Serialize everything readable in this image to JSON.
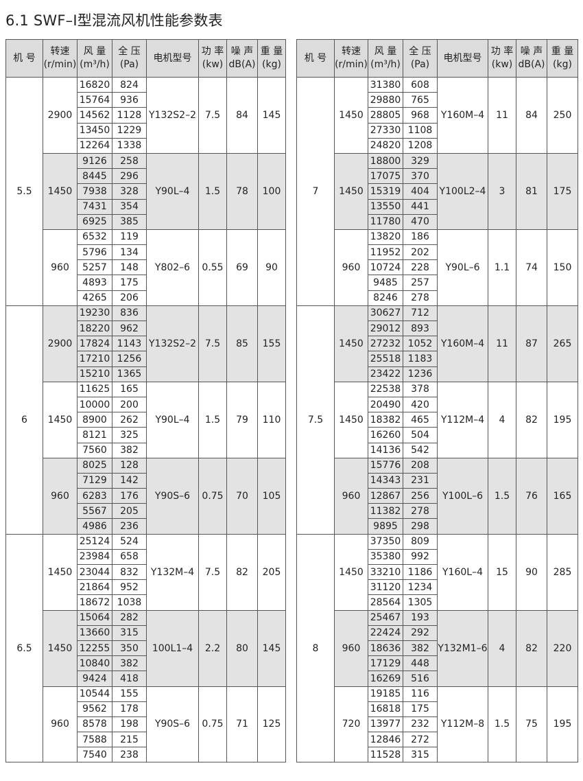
{
  "title": "6.1  SWF–I型混流风机性能参数表",
  "headers": [
    "机  号",
    "转速\n(r/min)",
    "风  量\n(m³/h)",
    "全  压\n(Pa)",
    "电机型号",
    "功  率\n(kw)",
    "噪  声\ndB(A)",
    "重  量\n(kg)"
  ],
  "colors": {
    "header_bg": "#dcdcdc",
    "shaded_group_bg": "#e3e3e3",
    "border": "#555555"
  },
  "tables": [
    {
      "machines": [
        {
          "no": "5.5",
          "groups": [
            {
              "speed": "2900",
              "motor": "Y132S2–2",
              "power": "7.5",
              "noise": "84",
              "weight": "145",
              "rows": [
                [
                  "16820",
                  "824"
                ],
                [
                  "15764",
                  "936"
                ],
                [
                  "14562",
                  "1128"
                ],
                [
                  "13450",
                  "1229"
                ],
                [
                  "12264",
                  "1338"
                ]
              ]
            },
            {
              "speed": "1450",
              "motor": "Y90L–4",
              "power": "1.5",
              "noise": "78",
              "weight": "100",
              "rows": [
                [
                  "9126",
                  "258"
                ],
                [
                  "8445",
                  "296"
                ],
                [
                  "7938",
                  "328"
                ],
                [
                  "7431",
                  "354"
                ],
                [
                  "6925",
                  "385"
                ]
              ]
            },
            {
              "speed": "960",
              "motor": "Y802–6",
              "power": "0.55",
              "noise": "69",
              "weight": "90",
              "rows": [
                [
                  "6532",
                  "119"
                ],
                [
                  "5796",
                  "134"
                ],
                [
                  "5257",
                  "148"
                ],
                [
                  "4893",
                  "175"
                ],
                [
                  "4265",
                  "206"
                ]
              ]
            }
          ]
        },
        {
          "no": "6",
          "groups": [
            {
              "speed": "2900",
              "motor": "Y132S2–2",
              "power": "7.5",
              "noise": "85",
              "weight": "155",
              "rows": [
                [
                  "19230",
                  "836"
                ],
                [
                  "18220",
                  "962"
                ],
                [
                  "17824",
                  "1143"
                ],
                [
                  "17210",
                  "1256"
                ],
                [
                  "15210",
                  "1365"
                ]
              ]
            },
            {
              "speed": "1450",
              "motor": "Y90L–4",
              "power": "1.5",
              "noise": "79",
              "weight": "110",
              "rows": [
                [
                  "11625",
                  "165"
                ],
                [
                  "10000",
                  "200"
                ],
                [
                  "8900",
                  "262"
                ],
                [
                  "8121",
                  "325"
                ],
                [
                  "7560",
                  "382"
                ]
              ]
            },
            {
              "speed": "960",
              "motor": "Y90S–6",
              "power": "0.75",
              "noise": "70",
              "weight": "105",
              "rows": [
                [
                  "8025",
                  "128"
                ],
                [
                  "7129",
                  "142"
                ],
                [
                  "6283",
                  "176"
                ],
                [
                  "5567",
                  "205"
                ],
                [
                  "4986",
                  "236"
                ]
              ]
            }
          ]
        },
        {
          "no": "6.5",
          "groups": [
            {
              "speed": "1450",
              "motor": "Y132M–4",
              "power": "7.5",
              "noise": "82",
              "weight": "205",
              "rows": [
                [
                  "25124",
                  "524"
                ],
                [
                  "23984",
                  "658"
                ],
                [
                  "23044",
                  "832"
                ],
                [
                  "21864",
                  "952"
                ],
                [
                  "18672",
                  "1038"
                ]
              ]
            },
            {
              "speed": "1450",
              "motor": "100L1–4",
              "power": "2.2",
              "noise": "80",
              "weight": "145",
              "rows": [
                [
                  "15064",
                  "282"
                ],
                [
                  "13660",
                  "315"
                ],
                [
                  "12255",
                  "350"
                ],
                [
                  "10840",
                  "382"
                ],
                [
                  "9424",
                  "418"
                ]
              ]
            },
            {
              "speed": "960",
              "motor": "Y90S–6",
              "power": "0.75",
              "noise": "71",
              "weight": "125",
              "rows": [
                [
                  "10544",
                  "155"
                ],
                [
                  "9562",
                  "178"
                ],
                [
                  "8578",
                  "198"
                ],
                [
                  "7588",
                  "215"
                ],
                [
                  "7540",
                  "238"
                ]
              ]
            }
          ]
        }
      ]
    },
    {
      "machines": [
        {
          "no": "7",
          "groups": [
            {
              "speed": "1450",
              "motor": "Y160M–4",
              "power": "11",
              "noise": "84",
              "weight": "250",
              "rows": [
                [
                  "31380",
                  "608"
                ],
                [
                  "29880",
                  "765"
                ],
                [
                  "28805",
                  "968"
                ],
                [
                  "27330",
                  "1108"
                ],
                [
                  "24820",
                  "1208"
                ]
              ]
            },
            {
              "speed": "1450",
              "motor": "Y100L2–4",
              "power": "3",
              "noise": "81",
              "weight": "175",
              "rows": [
                [
                  "18800",
                  "329"
                ],
                [
                  "17075",
                  "370"
                ],
                [
                  "15319",
                  "404"
                ],
                [
                  "13550",
                  "441"
                ],
                [
                  "11780",
                  "470"
                ]
              ]
            },
            {
              "speed": "960",
              "motor": "Y90L–6",
              "power": "1.1",
              "noise": "74",
              "weight": "150",
              "rows": [
                [
                  "13820",
                  "186"
                ],
                [
                  "11952",
                  "202"
                ],
                [
                  "10724",
                  "228"
                ],
                [
                  "9485",
                  "257"
                ],
                [
                  "8246",
                  "278"
                ]
              ]
            }
          ]
        },
        {
          "no": "7.5",
          "groups": [
            {
              "speed": "1450",
              "motor": "Y160M–4",
              "power": "11",
              "noise": "87",
              "weight": "265",
              "rows": [
                [
                  "30627",
                  "712"
                ],
                [
                  "29012",
                  "893"
                ],
                [
                  "27232",
                  "1052"
                ],
                [
                  "25518",
                  "1183"
                ],
                [
                  "23422",
                  "1236"
                ]
              ]
            },
            {
              "speed": "1450",
              "motor": "Y112M–4",
              "power": "4",
              "noise": "82",
              "weight": "195",
              "rows": [
                [
                  "22538",
                  "378"
                ],
                [
                  "20490",
                  "420"
                ],
                [
                  "18382",
                  "465"
                ],
                [
                  "16260",
                  "504"
                ],
                [
                  "14136",
                  "542"
                ]
              ]
            },
            {
              "speed": "960",
              "motor": "Y100L–6",
              "power": "1.5",
              "noise": "76",
              "weight": "165",
              "rows": [
                [
                  "15776",
                  "208"
                ],
                [
                  "14343",
                  "231"
                ],
                [
                  "12867",
                  "256"
                ],
                [
                  "11382",
                  "278"
                ],
                [
                  "9895",
                  "298"
                ]
              ]
            }
          ]
        },
        {
          "no": "8",
          "groups": [
            {
              "speed": "1450",
              "motor": "Y160L–4",
              "power": "15",
              "noise": "90",
              "weight": "285",
              "rows": [
                [
                  "37350",
                  "809"
                ],
                [
                  "35380",
                  "992"
                ],
                [
                  "33210",
                  "1186"
                ],
                [
                  "31120",
                  "1234"
                ],
                [
                  "28564",
                  "1305"
                ]
              ]
            },
            {
              "speed": "960",
              "motor": "Y132M1–6",
              "power": "4",
              "noise": "82",
              "weight": "220",
              "rows": [
                [
                  "25467",
                  "193"
                ],
                [
                  "22424",
                  "292"
                ],
                [
                  "18636",
                  "382"
                ],
                [
                  "17129",
                  "448"
                ],
                [
                  "16269",
                  "516"
                ]
              ]
            },
            {
              "speed": "720",
              "motor": "Y112M–8",
              "power": "1.5",
              "noise": "75",
              "weight": "195",
              "rows": [
                [
                  "19185",
                  "116"
                ],
                [
                  "16818",
                  "175"
                ],
                [
                  "13977",
                  "232"
                ],
                [
                  "12846",
                  "272"
                ],
                [
                  "11528",
                  "315"
                ]
              ]
            }
          ]
        }
      ]
    }
  ]
}
